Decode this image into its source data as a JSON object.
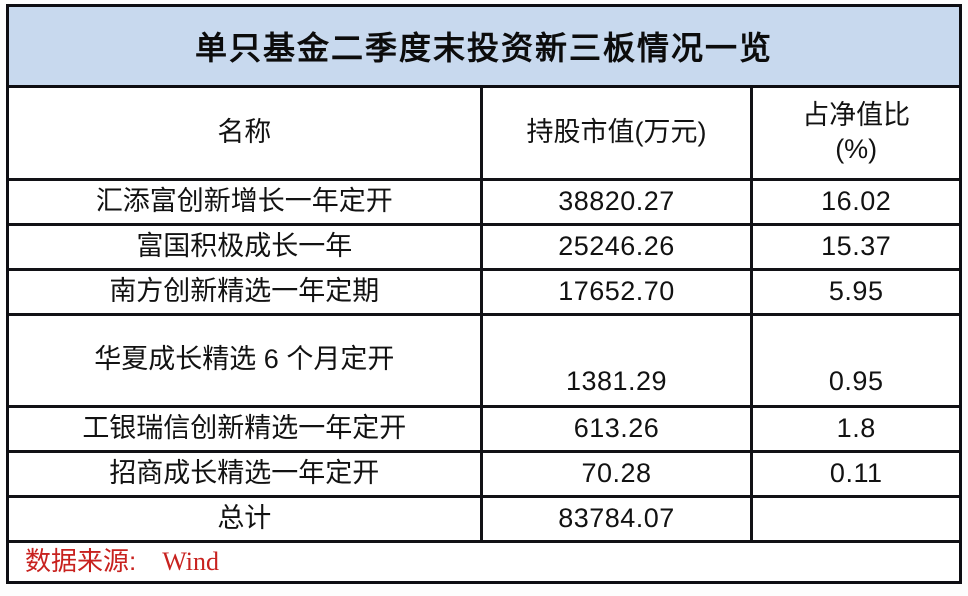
{
  "title": "单只基金二季度末投资新三板情况一览",
  "table": {
    "headers": {
      "name": "名称",
      "value": "持股市值(万元)",
      "ratio_line1": "占净值比",
      "ratio_line2": "(%)"
    },
    "rows": [
      {
        "name": "汇添富创新增长一年定开",
        "value": "38820.27",
        "ratio": "16.02"
      },
      {
        "name": "富国积极成长一年",
        "value": "25246.26",
        "ratio": "15.37"
      },
      {
        "name": "南方创新精选一年定期",
        "value": "17652.70",
        "ratio": "5.95"
      },
      {
        "name": "华夏成长精选 6 个月定开",
        "value": "1381.29",
        "ratio": "0.95"
      },
      {
        "name": "工银瑞信创新精选一年定开",
        "value": "613.26",
        "ratio": "1.8"
      },
      {
        "name": "招商成长精选一年定开",
        "value": "70.28",
        "ratio": "0.11"
      }
    ],
    "total": {
      "label": "总计",
      "value": "83784.07",
      "ratio": ""
    }
  },
  "footer": {
    "source_label": "数据来源:",
    "source_value": "Wind"
  },
  "colors": {
    "title_bg": "#c8d9ee",
    "grid_border": "#121216",
    "source_text": "#c8221f",
    "text": "#121212"
  },
  "chart_data": {
    "type": "table",
    "title": "单只基金二季度末投资新三板情况一览",
    "columns": [
      "名称",
      "持股市值(万元)",
      "占净值比(%)"
    ],
    "rows": [
      [
        "汇添富创新增长一年定开",
        38820.27,
        16.02
      ],
      [
        "富国积极成长一年",
        25246.26,
        15.37
      ],
      [
        "南方创新精选一年定期",
        17652.7,
        5.95
      ],
      [
        "华夏成长精选 6 个月定开",
        1381.29,
        0.95
      ],
      [
        "工银瑞信创新精选一年定开",
        613.26,
        1.8
      ],
      [
        "招商成长精选一年定开",
        70.28,
        0.11
      ]
    ],
    "total_row": [
      "总计",
      83784.07,
      null
    ],
    "source": "Wind",
    "layout": {
      "grid": true,
      "title_position": "top-banner"
    }
  }
}
